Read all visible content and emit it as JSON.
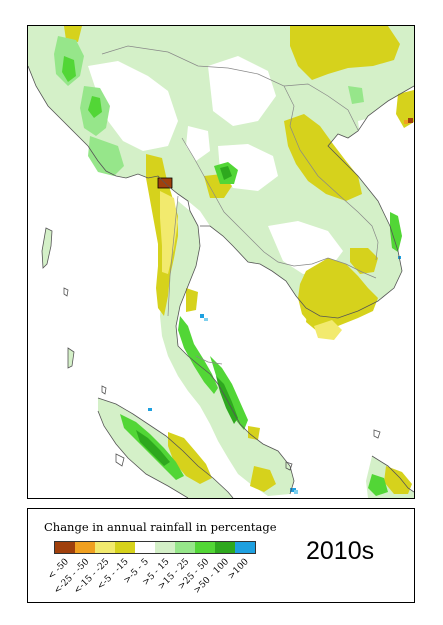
{
  "legend": {
    "title": "Change in annual rainfall in percentage",
    "classes": [
      {
        "label": "< -50",
        "color": "#a0400c"
      },
      {
        "label": "<-25 - -50",
        "color": "#f0a020"
      },
      {
        "label": "<-15 - -25",
        "color": "#f2ea6e"
      },
      {
        "label": "<-5 - -15",
        "color": "#d6d21c"
      },
      {
        "label": ">-5 - 5",
        "color": "#ffffff"
      },
      {
        "label": ">5 - 15",
        "color": "#d4f0c8"
      },
      {
        "label": ">15 - 25",
        "color": "#96e68a"
      },
      {
        "label": ">25 - 50",
        "color": "#52d636"
      },
      {
        "label": ">50 - 100",
        "color": "#2ea81e"
      },
      {
        "label": ">100",
        "color": "#1ea0e0"
      }
    ]
  },
  "period_label": "2010s",
  "colors": {
    "land_neutral": "#ffffff",
    "coastline": "#555555",
    "border": "#888888",
    "sea": "#ffffff"
  }
}
